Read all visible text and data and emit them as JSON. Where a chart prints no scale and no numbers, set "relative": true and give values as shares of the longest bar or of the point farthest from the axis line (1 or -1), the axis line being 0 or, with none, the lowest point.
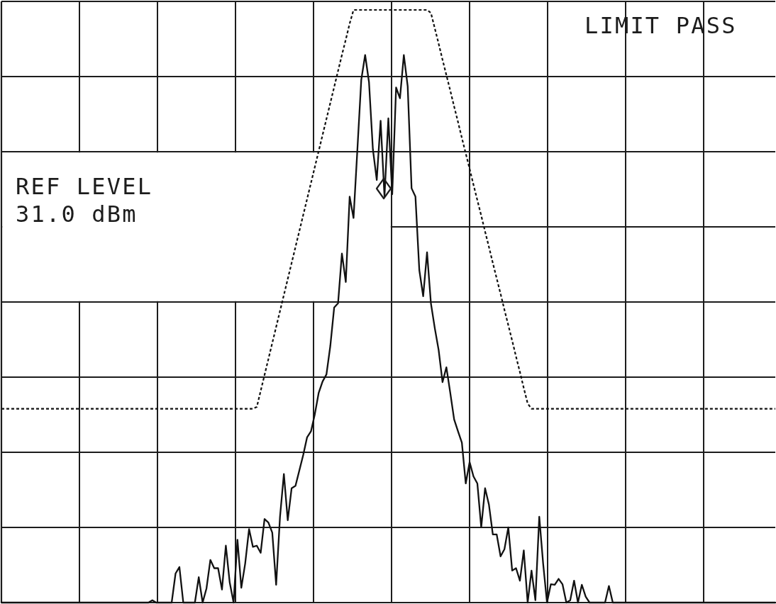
{
  "chart_data": {
    "type": "line",
    "relative": true,
    "grid": true,
    "annotations": [
      "LIMIT PASS",
      "REF LEVEL\n31.0 dBm"
    ],
    "categories": [
      null,
      null,
      null,
      null,
      null,
      null,
      null,
      null,
      null,
      null,
      null,
      null,
      null,
      null,
      null,
      null,
      null,
      null,
      null,
      null,
      null,
      null,
      null,
      null,
      null,
      null,
      null,
      null,
      null,
      null,
      null,
      null,
      null,
      null,
      null,
      null,
      null,
      null,
      null,
      null,
      null,
      null,
      null,
      null,
      null,
      null,
      null,
      null,
      null,
      null,
      null,
      null,
      null,
      null,
      null,
      null,
      null,
      null,
      null,
      null,
      null,
      null,
      null,
      null,
      null,
      null,
      null,
      null,
      null,
      null,
      null,
      null,
      null,
      null,
      null,
      null,
      null,
      null,
      null,
      null,
      null,
      null,
      null,
      null,
      null,
      null,
      null,
      null,
      null,
      null,
      null,
      null,
      null,
      null,
      null,
      null,
      null,
      null,
      null,
      null,
      null,
      null,
      null,
      null,
      null,
      null,
      null,
      null,
      null,
      null,
      null,
      null,
      null,
      null,
      null,
      null,
      null,
      null,
      null,
      null,
      null,
      null,
      null,
      null,
      null,
      null,
      null,
      null,
      null,
      null,
      null,
      null,
      null,
      null,
      null,
      null,
      null,
      null,
      null,
      null,
      null,
      null,
      null,
      null,
      null,
      null,
      null,
      null,
      null,
      null,
      null,
      null,
      null,
      null,
      null,
      null,
      null,
      null,
      null,
      null,
      null,
      null,
      null,
      null,
      null,
      null,
      null,
      null,
      null,
      null,
      null,
      null,
      null,
      null,
      null,
      null,
      null,
      null,
      null,
      null,
      null,
      null,
      null,
      null,
      null,
      null,
      null,
      null,
      null,
      null,
      null,
      null,
      null,
      null,
      null,
      null,
      null,
      null,
      null,
      null,
      null
    ],
    "series": [
      {
        "color": "#111111",
        "values": [
          0,
          0,
          0,
          0,
          0,
          0,
          0,
          0,
          0,
          0,
          0,
          0,
          0,
          0,
          0,
          0,
          0,
          0,
          0,
          0,
          0,
          0,
          0,
          0,
          0,
          0,
          0,
          0,
          0,
          0,
          0,
          0,
          0,
          0,
          0,
          0,
          0,
          0,
          0,
          0.004,
          0,
          0,
          0,
          0,
          0,
          0.049,
          0.06,
          0,
          0,
          0,
          0,
          0.043,
          0,
          0.024,
          0.072,
          0.058,
          0.058,
          0.022,
          0.096,
          0.034,
          0,
          0.106,
          0.025,
          0.066,
          0.124,
          0.094,
          0.096,
          0.084,
          0.141,
          0.135,
          0.118,
          0.03,
          0.145,
          0.217,
          0.139,
          0.193,
          0.197,
          0.223,
          0.249,
          0.279,
          0.289,
          0.318,
          0.354,
          0.373,
          0.385,
          0.433,
          0.498,
          0.505,
          0.589,
          0.541,
          0.685,
          0.649,
          0.765,
          0.882,
          0.924,
          0.878,
          0.765,
          0.713,
          0.813,
          0.685,
          0.817,
          0.689,
          0.869,
          0.851,
          0.924,
          0.871,
          0.699,
          0.685,
          0.561,
          0.517,
          0.591,
          0.505,
          0.463,
          0.426,
          0.372,
          0.397,
          0.354,
          0.309,
          0.289,
          0.27,
          0.201,
          0.237,
          0.213,
          0.201,
          0.127,
          0.193,
          0.165,
          0.115,
          0.115,
          0.078,
          0.09,
          0.127,
          0.054,
          0.058,
          0.037,
          0.088,
          0,
          0.054,
          0.004,
          0.145,
          0.066,
          0,
          0.031,
          0.03,
          0.04,
          0.031,
          0,
          0.004,
          0.037,
          0,
          0.03,
          0.01,
          0,
          0,
          0,
          0,
          0,
          0.028,
          0,
          0,
          0,
          0,
          0,
          0,
          0,
          0,
          0,
          0,
          0,
          0,
          0,
          0,
          0,
          0,
          0,
          0,
          0,
          0,
          0,
          0,
          0,
          0,
          0,
          0,
          0,
          0,
          0,
          0,
          0,
          0,
          0,
          0,
          0,
          0,
          0,
          0,
          0,
          0,
          0,
          0,
          0
        ]
      },
      {
        "color": "#111111",
        "line_style": "dotted",
        "values": [
          0.327,
          0.327,
          0.327,
          0.327,
          0.327,
          0.327,
          0.327,
          0.327,
          0.327,
          0.327,
          0.327,
          0.327,
          0.327,
          0.327,
          0.327,
          0.327,
          0.327,
          0.327,
          0.327,
          0.327,
          0.327,
          0.327,
          0.327,
          0.327,
          0.327,
          0.327,
          0.327,
          0.327,
          0.327,
          0.327,
          0.327,
          0.327,
          0.327,
          0.327,
          0.327,
          0.327,
          0.327,
          0.327,
          0.327,
          0.327,
          0.327,
          0.327,
          0.327,
          0.327,
          0.327,
          0.327,
          0.327,
          0.327,
          0.327,
          0.327,
          0.327,
          0.327,
          0.327,
          0.327,
          0.327,
          0.327,
          0.327,
          0.327,
          0.327,
          0.327,
          0.327,
          0.327,
          0.327,
          0.327,
          0.327,
          0.327,
          0.33,
          0.357,
          0.384,
          0.411,
          0.438,
          0.465,
          0.492,
          0.519,
          0.546,
          0.573,
          0.6,
          0.627,
          0.654,
          0.681,
          0.708,
          0.735,
          0.762,
          0.789,
          0.816,
          0.843,
          0.87,
          0.897,
          0.924,
          0.95,
          0.977,
          1,
          1,
          1,
          1,
          1,
          1,
          1,
          1,
          1,
          1,
          1,
          1,
          1,
          1,
          1,
          1,
          1,
          1,
          1,
          1,
          0.995,
          0.969,
          0.943,
          0.916,
          0.89,
          0.864,
          0.837,
          0.811,
          0.784,
          0.758,
          0.732,
          0.705,
          0.679,
          0.653,
          0.626,
          0.6,
          0.573,
          0.547,
          0.521,
          0.494,
          0.468,
          0.442,
          0.415,
          0.389,
          0.362,
          0.336,
          0.327,
          0.327,
          0.327,
          0.327,
          0.327,
          0.327,
          0.327,
          0.327,
          0.327,
          0.327,
          0.327,
          0.327,
          0.327,
          0.327,
          0.327,
          0.327,
          0.327,
          0.327,
          0.327,
          0.327,
          0.327,
          0.327,
          0.327,
          0.327,
          0.327,
          0.327,
          0.327,
          0.327,
          0.327,
          0.327,
          0.327,
          0.327,
          0.327,
          0.327,
          0.327,
          0.327,
          0.327,
          0.327,
          0.327,
          0.327,
          0.327,
          0.327,
          0.327,
          0.327,
          0.327,
          0.327,
          0.327,
          0.327,
          0.327,
          0.327,
          0.327,
          0.327,
          0.327,
          0.327,
          0.327,
          0.327,
          0.327,
          0.327,
          0.327,
          0.327,
          0.327,
          0.327,
          0.327,
          0.327
        ]
      }
    ]
  }
}
